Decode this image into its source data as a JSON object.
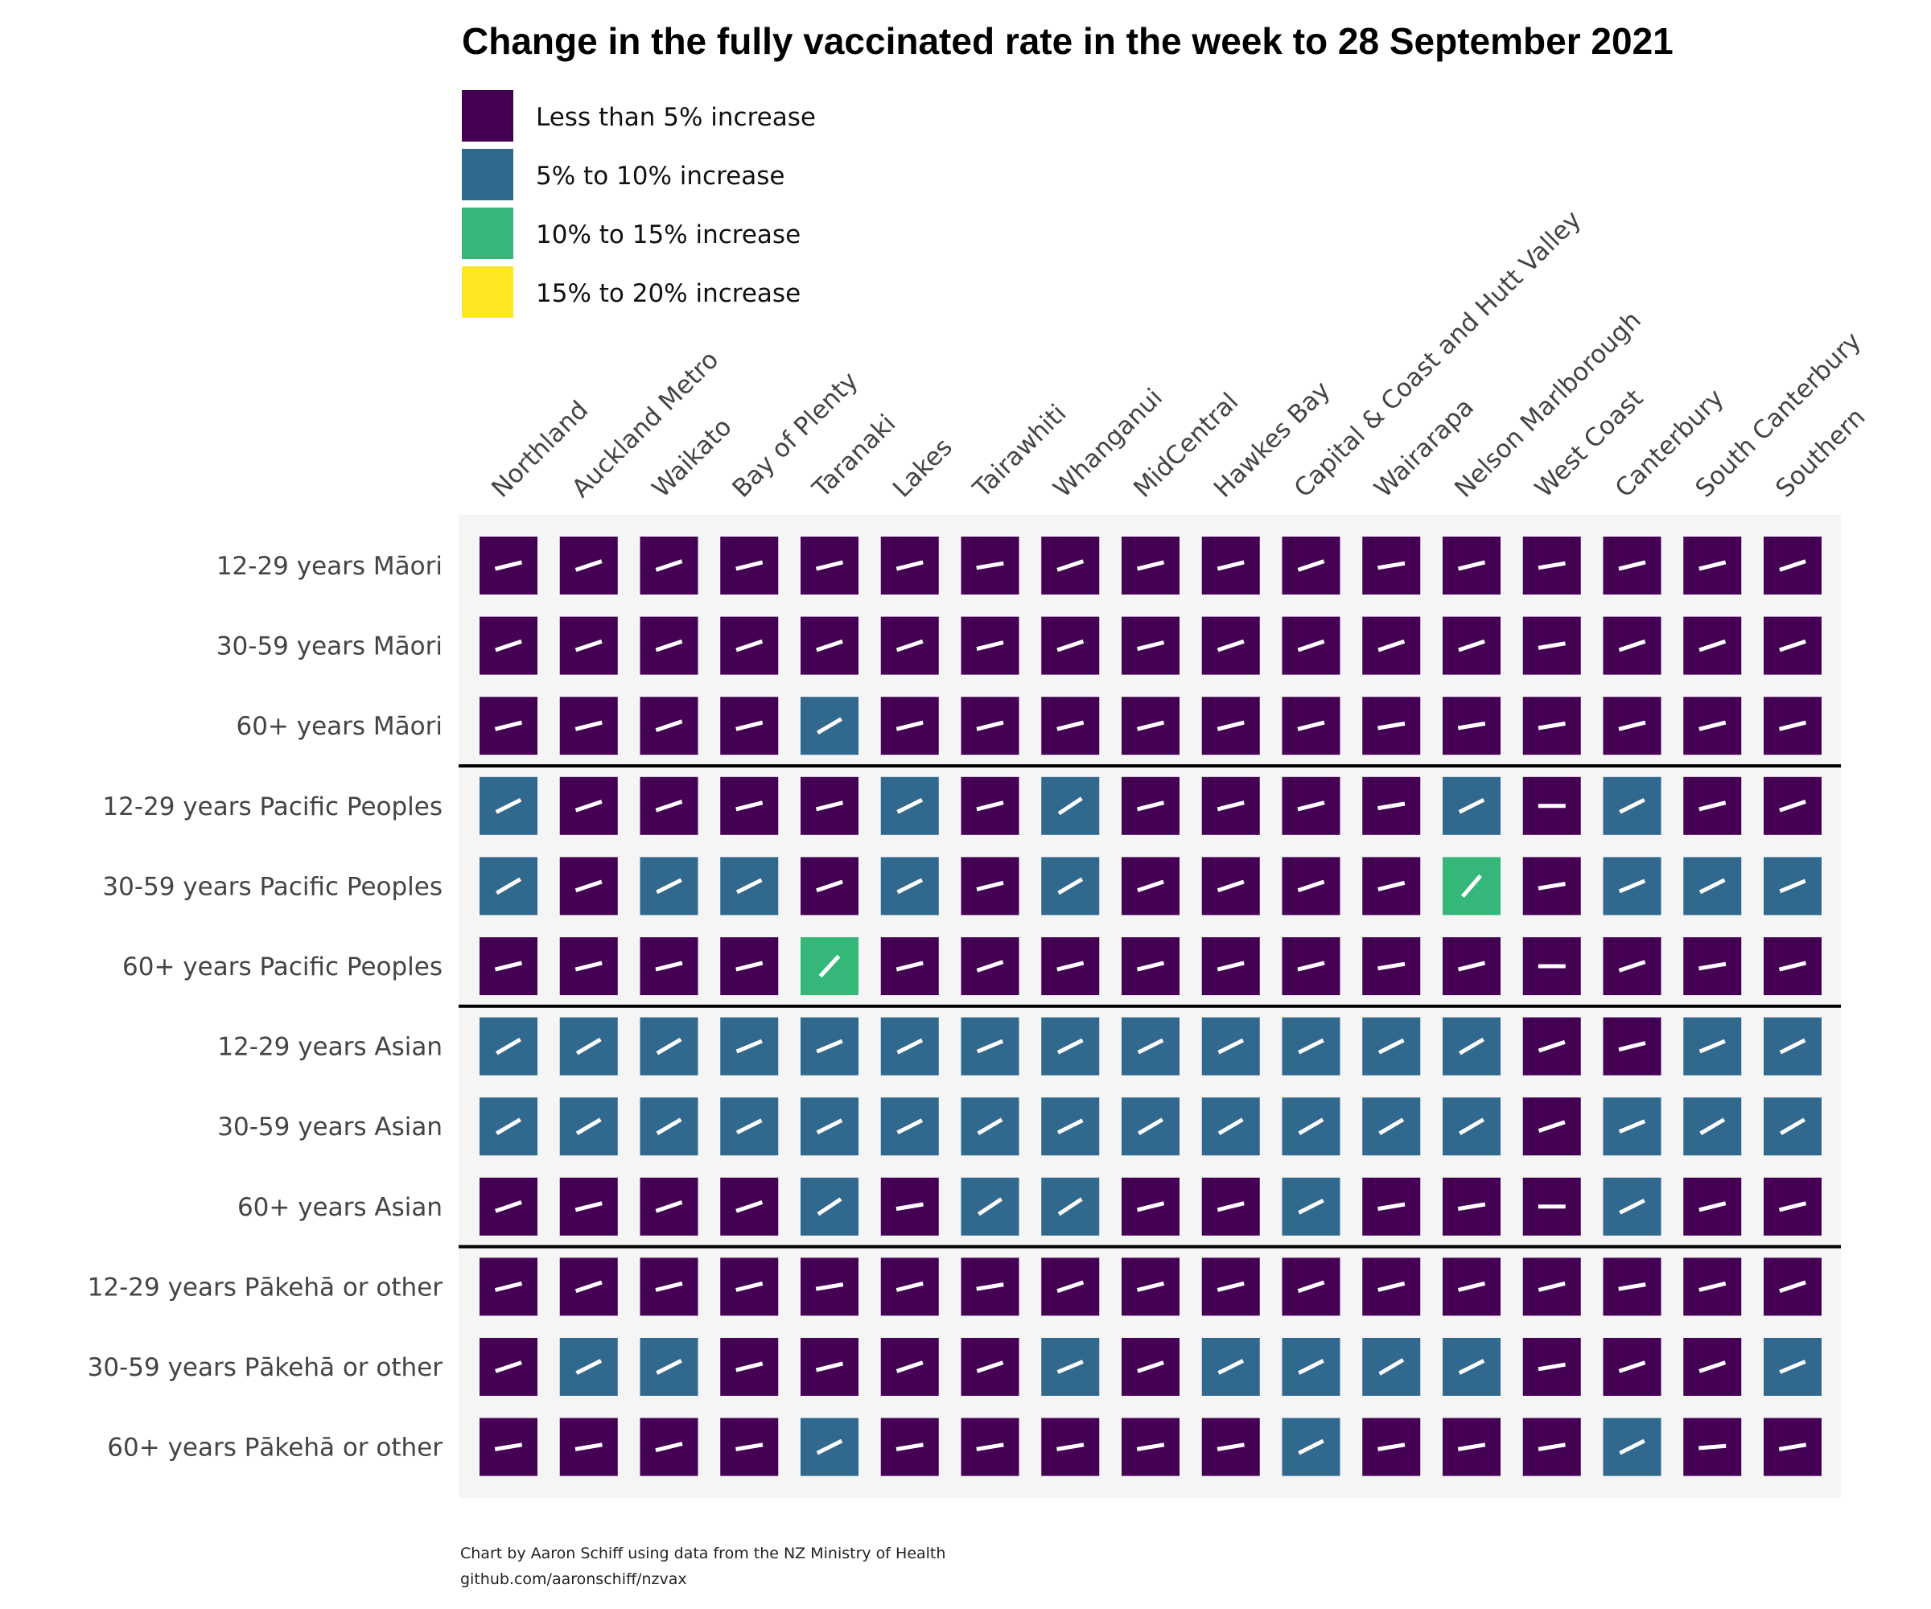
{
  "chart_data": {
    "type": "heatmap",
    "title": "Change in the fully vaccinated rate in the week to 28 September 2021",
    "legend": [
      {
        "label": "Less than 5% increase",
        "color": "#440154"
      },
      {
        "label": "5% to 10% increase",
        "color": "#31688e"
      },
      {
        "label": "10% to 15% increase",
        "color": "#35b779"
      },
      {
        "label": "15% to 20% increase",
        "color": "#fde725"
      }
    ],
    "columns": [
      "Northland",
      "Auckland Metro",
      "Waikato",
      "Bay of Plenty",
      "Taranaki",
      "Lakes",
      "Tairawhiti",
      "Whanganui",
      "MidCentral",
      "Hawkes Bay",
      "Capital & Coast and Hutt Valley",
      "Wairarapa",
      "Nelson Marlborough",
      "West Coast",
      "Canterbury",
      "South Canterbury",
      "Southern"
    ],
    "rows": [
      "12-29 years Māori",
      "30-59 years Māori",
      "60+ years Māori",
      "12-29 years Pacific Peoples",
      "30-59 years Pacific Peoples",
      "60+ years Pacific Peoples",
      "12-29 years Asian",
      "30-59 years Asian",
      "60+ years Asian",
      "12-29 years Pākehā or other",
      "30-59 years Pākehā or other",
      "60+ years Pākehā or other"
    ],
    "group_separators_after_row": [
      2,
      5,
      8
    ],
    "category_index": [
      [
        0,
        0,
        0,
        0,
        0,
        0,
        0,
        0,
        0,
        0,
        0,
        0,
        0,
        0,
        0,
        0,
        0
      ],
      [
        0,
        0,
        0,
        0,
        0,
        0,
        0,
        0,
        0,
        0,
        0,
        0,
        0,
        0,
        0,
        0,
        0
      ],
      [
        0,
        0,
        0,
        0,
        1,
        0,
        0,
        0,
        0,
        0,
        0,
        0,
        0,
        0,
        0,
        0,
        0
      ],
      [
        1,
        0,
        0,
        0,
        0,
        1,
        0,
        1,
        0,
        0,
        0,
        0,
        1,
        0,
        1,
        0,
        0
      ],
      [
        1,
        0,
        1,
        1,
        0,
        1,
        0,
        1,
        0,
        0,
        0,
        0,
        2,
        0,
        1,
        1,
        1
      ],
      [
        0,
        0,
        0,
        0,
        2,
        0,
        0,
        0,
        0,
        0,
        0,
        0,
        0,
        0,
        0,
        0,
        0
      ],
      [
        1,
        1,
        1,
        1,
        1,
        1,
        1,
        1,
        1,
        1,
        1,
        1,
        1,
        0,
        0,
        1,
        1
      ],
      [
        1,
        1,
        1,
        1,
        1,
        1,
        1,
        1,
        1,
        1,
        1,
        1,
        1,
        0,
        1,
        1,
        1
      ],
      [
        0,
        0,
        0,
        0,
        1,
        0,
        1,
        1,
        0,
        0,
        1,
        0,
        0,
        0,
        1,
        0,
        0
      ],
      [
        0,
        0,
        0,
        0,
        0,
        0,
        0,
        0,
        0,
        0,
        0,
        0,
        0,
        0,
        0,
        0,
        0
      ],
      [
        0,
        1,
        1,
        0,
        0,
        0,
        0,
        1,
        0,
        1,
        1,
        1,
        1,
        0,
        0,
        0,
        1
      ],
      [
        0,
        0,
        0,
        0,
        1,
        0,
        0,
        0,
        0,
        0,
        1,
        0,
        0,
        0,
        1,
        0,
        0
      ]
    ],
    "increase_pct": [
      [
        3,
        4,
        4,
        3,
        3,
        3,
        2,
        4,
        3,
        3,
        4,
        2,
        3,
        2,
        3,
        3,
        4
      ],
      [
        4,
        4,
        4,
        4,
        4,
        4,
        3,
        4,
        3,
        4,
        4,
        4,
        4,
        2,
        4,
        4,
        4
      ],
      [
        3,
        3,
        4,
        3,
        7,
        3,
        3,
        3,
        3,
        3,
        3,
        2,
        2,
        2,
        3,
        3,
        3
      ],
      [
        6,
        4,
        4,
        3,
        3,
        6,
        3,
        8,
        3,
        3,
        3,
        2,
        6,
        0,
        6,
        3,
        4
      ],
      [
        7,
        4,
        6,
        6,
        4,
        6,
        3,
        7,
        4,
        4,
        4,
        3,
        14,
        2,
        5,
        6,
        5
      ],
      [
        3,
        3,
        3,
        3,
        13,
        3,
        4,
        3,
        3,
        3,
        3,
        2,
        3,
        0,
        4,
        2,
        3
      ],
      [
        7,
        7,
        7,
        5,
        5,
        6,
        5,
        6,
        6,
        6,
        6,
        6,
        7,
        4,
        3,
        5,
        6
      ],
      [
        7,
        7,
        7,
        6,
        6,
        6,
        7,
        6,
        7,
        7,
        7,
        7,
        7,
        4,
        5,
        7,
        7
      ],
      [
        4,
        3,
        4,
        4,
        8,
        2,
        8,
        8,
        3,
        3,
        6,
        2,
        2,
        0,
        6,
        3,
        3
      ],
      [
        3,
        4,
        3,
        3,
        2,
        3,
        2,
        4,
        3,
        3,
        4,
        3,
        3,
        3,
        2,
        3,
        4
      ],
      [
        4,
        6,
        6,
        3,
        3,
        4,
        4,
        5,
        4,
        6,
        6,
        7,
        6,
        2,
        4,
        4,
        5
      ],
      [
        2,
        2,
        3,
        2,
        6,
        2,
        2,
        2,
        2,
        2,
        6,
        2,
        2,
        2,
        6,
        1,
        2
      ]
    ]
  },
  "caption": {
    "line1": "Chart by Aaron Schiff using data from the NZ Ministry of Health",
    "line2": "github.com/aaronschiff/nzvax"
  }
}
